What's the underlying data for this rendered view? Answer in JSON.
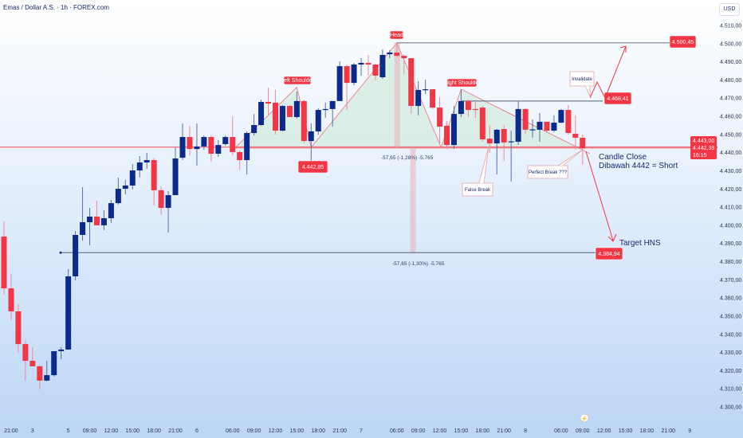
{
  "header": {
    "title": "Emas / Dollar A.S. · 1h · FOREX.com",
    "currency": "USD"
  },
  "colors": {
    "up": "#0c2a8c",
    "down": "#f23645",
    "neckline": "#ef6f7b",
    "fill": "#d6ece1",
    "level_line": "#55607a"
  },
  "price_axis": {
    "labels": [
      "4.510,00",
      "4.500,00",
      "4.490,00",
      "4.480,00",
      "4.470,00",
      "4.460,00",
      "4.450,00",
      "4.440,00",
      "4.430,00",
      "4.420,00",
      "4.410,00",
      "4.400,00",
      "4.390,00",
      "4.380,00",
      "4.370,00",
      "4.360,00",
      "4.350,00",
      "4.340,00",
      "4.330,00",
      "4.320,00",
      "4.310,00",
      "4.300,00"
    ],
    "current": {
      "price_a": "4.443,00",
      "price_b": "4.442,39",
      "countdown": "16:15"
    }
  },
  "chart_data": {
    "type": "candlestick",
    "title": "Emas / Dollar A.S. · 1h · FOREX.com",
    "ylim": [
      4300,
      4510
    ],
    "y_scale": "linear",
    "grid": false,
    "candles_ohlc": [
      [
        4393.8,
        4402.2,
        4361.8,
        4365.3
      ],
      [
        4365.3,
        4373.2,
        4347.8,
        4352.6
      ],
      [
        4352.6,
        4356.6,
        4329.8,
        4334.6
      ],
      [
        4334.6,
        4336.8,
        4314.5,
        4325.4
      ],
      [
        4325.4,
        4332.9,
        4322.4,
        4322.4
      ],
      [
        4322.4,
        4322.8,
        4309.7,
        4314.5
      ],
      [
        4314.5,
        4325.4,
        4314.0,
        4317.5
      ],
      [
        4317.5,
        4330.7,
        4316.7,
        4330.7
      ],
      [
        4330.7,
        4332.9,
        4326.3,
        4331.6
      ],
      [
        4331.6,
        4375.9,
        4331.6,
        4371.9
      ],
      [
        4371.9,
        4396.9,
        4369.7,
        4394.7
      ],
      [
        4394.7,
        4421.0,
        4391.6,
        4401.7
      ],
      [
        4401.7,
        4409.6,
        4389.0,
        4404.8
      ],
      [
        4404.8,
        4413.6,
        4400.0,
        4400.0
      ],
      [
        4400.0,
        4408.3,
        4397.3,
        4403.9
      ],
      [
        4403.9,
        4414.0,
        4401.3,
        4412.2
      ],
      [
        4412.2,
        4426.3,
        4411.4,
        4420.1
      ],
      [
        4420.1,
        4425.0,
        4417.1,
        4421.9
      ],
      [
        4421.9,
        4433.7,
        4419.7,
        4430.2
      ],
      [
        4430.2,
        4438.1,
        4426.3,
        4434.6
      ],
      [
        4434.6,
        4439.9,
        4431.1,
        4435.9
      ],
      [
        4435.9,
        4437.2,
        4410.9,
        4419.3
      ],
      [
        4419.3,
        4421.4,
        4405.7,
        4409.6
      ],
      [
        4409.6,
        4418.8,
        4396.0,
        4416.6
      ],
      [
        4416.6,
        4442.9,
        4416.6,
        4436.8
      ],
      [
        4437.2,
        4456.1,
        4435.9,
        4448.6
      ],
      [
        4448.6,
        4454.8,
        4438.5,
        4442.0
      ],
      [
        4442.0,
        4456.1,
        4432.8,
        4443.4
      ],
      [
        4443.4,
        4449.5,
        4441.6,
        4448.6
      ],
      [
        4448.6,
        4449.5,
        4435.0,
        4439.4
      ],
      [
        4439.4,
        4446.9,
        4437.7,
        4444.2
      ],
      [
        4444.7,
        4449.5,
        4443.8,
        4448.6
      ],
      [
        4448.6,
        4460.0,
        4438.5,
        4440.3
      ],
      [
        4440.3,
        4441.2,
        4430.6,
        4435.9
      ],
      [
        4435.9,
        4451.7,
        4428.0,
        4450.8
      ],
      [
        4450.8,
        4461.3,
        4449.5,
        4455.2
      ],
      [
        4455.2,
        4469.2,
        4454.8,
        4467.9
      ],
      [
        4467.9,
        4475.8,
        4460.5,
        4467.0
      ],
      [
        4467.5,
        4474.5,
        4449.9,
        4452.1
      ],
      [
        4452.1,
        4466.2,
        4451.7,
        4465.7
      ],
      [
        4465.7,
        4466.2,
        4459.6,
        4459.6
      ],
      [
        4459.6,
        4473.6,
        4458.7,
        4468.4
      ],
      [
        4468.4,
        4469.2,
        4445.1,
        4446.4
      ],
      [
        4446.4,
        4456.1,
        4442.5,
        4451.7
      ],
      [
        4451.7,
        4464.4,
        4449.9,
        4463.5
      ],
      [
        4463.5,
        4467.5,
        4459.1,
        4464.0
      ],
      [
        4464.0,
        4468.4,
        4454.3,
        4468.4
      ],
      [
        4468.4,
        4490.3,
        4468.4,
        4487.6
      ],
      [
        4487.6,
        4488.5,
        4463.5,
        4478.4
      ],
      [
        4478.4,
        4489.4,
        4477.1,
        4488.5
      ],
      [
        4488.5,
        4492.0,
        4482.4,
        4489.4
      ],
      [
        4489.4,
        4493.8,
        4482.4,
        4488.5
      ],
      [
        4488.5,
        4489.0,
        4479.8,
        4482.4
      ],
      [
        4481.5,
        4496.8,
        4480.6,
        4493.8
      ],
      [
        4494.2,
        4496.4,
        4492.0,
        4495.1
      ],
      [
        4495.1,
        4500.45,
        4492.5,
        4493.3
      ],
      [
        4493.3,
        4494.2,
        4483.3,
        4492.0
      ],
      [
        4492.0,
        4492.0,
        4461.3,
        4465.7
      ],
      [
        4465.7,
        4479.3,
        4460.5,
        4474.5
      ],
      [
        4474.5,
        4480.2,
        4472.3,
        4474.9
      ],
      [
        4474.9,
        4474.9,
        4464.0,
        4464.8
      ],
      [
        4464.8,
        4470.5,
        4445.1,
        4454.3
      ],
      [
        4454.8,
        4457.4,
        4442.0,
        4444.2
      ],
      [
        4444.2,
        4465.7,
        4442.0,
        4461.3
      ],
      [
        4461.3,
        4474.9,
        4459.6,
        4468.4
      ],
      [
        4468.4,
        4469.2,
        4459.6,
        4463.5
      ],
      [
        4464.0,
        4467.9,
        4459.1,
        4463.8
      ],
      [
        4464.8,
        4465.7,
        4446.0,
        4447.3
      ],
      [
        4447.7,
        4455.2,
        4439.9,
        4445.1
      ],
      [
        4445.1,
        4453.0,
        4428.0,
        4452.6
      ],
      [
        4453.0,
        4455.2,
        4435.5,
        4445.6
      ],
      [
        4446.0,
        4452.1,
        4424.1,
        4446.2
      ],
      [
        4446.0,
        4468.4,
        4444.2,
        4464.0
      ],
      [
        4464.0,
        4464.4,
        4450.4,
        4452.6
      ],
      [
        4452.6,
        4458.3,
        4448.2,
        4452.8
      ],
      [
        4452.6,
        4461.8,
        4446.0,
        4457.0
      ],
      [
        4457.0,
        4457.0,
        4450.8,
        4452.1
      ],
      [
        4452.1,
        4460.5,
        4451.3,
        4456.5
      ],
      [
        4456.5,
        4464.0,
        4456.1,
        4463.5
      ],
      [
        4463.5,
        4466.2,
        4449.9,
        4450.8
      ],
      [
        4450.4,
        4460.5,
        4441.6,
        4448.2
      ],
      [
        4448.2,
        4449.9,
        4433.3,
        4442.39
      ]
    ],
    "x_ticks": [
      {
        "label": "21:00",
        "bar": 1
      },
      {
        "label": "3",
        "bar": 4
      },
      {
        "label": "5",
        "bar": 9
      },
      {
        "label": "09:00",
        "bar": 12
      },
      {
        "label": "12:00",
        "bar": 15
      },
      {
        "label": "15:00",
        "bar": 18
      },
      {
        "label": "18:00",
        "bar": 21
      },
      {
        "label": "21:00",
        "bar": 24
      },
      {
        "label": "6",
        "bar": 27
      },
      {
        "label": "06:00",
        "bar": 32
      },
      {
        "label": "09:00",
        "bar": 35
      },
      {
        "label": "12:00",
        "bar": 38
      },
      {
        "label": "15:00",
        "bar": 41
      },
      {
        "label": "18:00",
        "bar": 44
      },
      {
        "label": "21:00",
        "bar": 47
      },
      {
        "label": "7",
        "bar": 50
      },
      {
        "label": "06:00",
        "bar": 55
      },
      {
        "label": "09:00",
        "bar": 58
      },
      {
        "label": "12:00",
        "bar": 61
      },
      {
        "label": "15:00",
        "bar": 64
      },
      {
        "label": "18:00",
        "bar": 67
      },
      {
        "label": "21:00",
        "bar": 70
      },
      {
        "label": "8",
        "bar": 73
      },
      {
        "label": "06:00",
        "bar": 78
      },
      {
        "label": "09:00",
        "bar": 81
      },
      {
        "label": "12:00",
        "bar": 84
      },
      {
        "label": "15:00",
        "bar": 87
      },
      {
        "label": "18:00",
        "bar": 90
      },
      {
        "label": "21:00",
        "bar": 93
      },
      {
        "label": "9",
        "bar": 96
      }
    ],
    "levels": {
      "head": "4.500,45",
      "invalidate": "4.468,41",
      "neckline": "4.442,85",
      "target": "4.384,94"
    },
    "annotations": {
      "left_shoulder": "Left Shoulder",
      "head": "Head",
      "right_shoulder": "Right Shoulder",
      "invalidate": "Invalidate",
      "false_break": "False Break",
      "perfect_break": "Perfect Break ???",
      "candle_close_1": "Candle Close",
      "candle_close_2": "Dibawah 4442 = Short",
      "target": "Target HNS",
      "measure_1": "-57,65 (-1,28%) -5.765",
      "measure_2": "-57,65 (-1,30%) -5.765"
    }
  }
}
